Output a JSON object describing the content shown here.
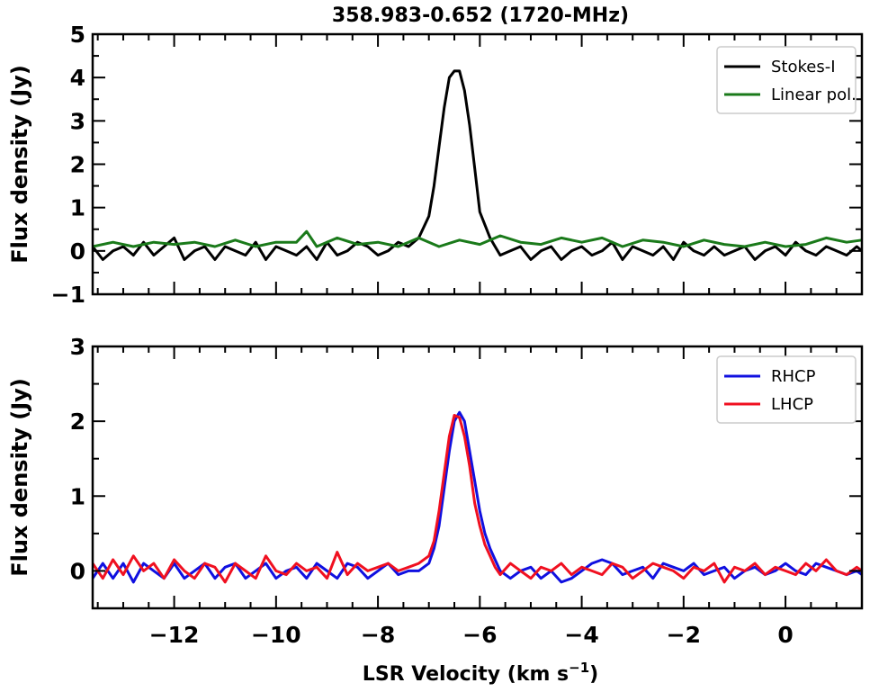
{
  "figure_title": "358.983-0.652 (1720-MHz)",
  "xlabel_main": "LSR Velocity (km s",
  "xlabel_sup": "−1",
  "xlabel_end": ")",
  "colors": {
    "stokes_i": "#000000",
    "linear_pol": "#1a7a1a",
    "rhcp": "#1010e0",
    "lhcp": "#f01020"
  },
  "chart_data": [
    {
      "type": "line",
      "panel": "top",
      "ylabel": "Flux density (Jy)",
      "xlim": [
        -13.6,
        1.5
      ],
      "ylim": [
        -1,
        5
      ],
      "yticks": [
        -1,
        0,
        1,
        2,
        3,
        4,
        5
      ],
      "ytick_labels": [
        "−1",
        "0",
        "1",
        "2",
        "3",
        "4",
        "5"
      ],
      "legend_position": "top-right",
      "series": [
        {
          "name": "Stokes-I",
          "x": [
            -13.6,
            -13.4,
            -13.2,
            -13.0,
            -12.8,
            -12.6,
            -12.4,
            -12.2,
            -12.0,
            -11.8,
            -11.6,
            -11.4,
            -11.2,
            -11.0,
            -10.8,
            -10.6,
            -10.4,
            -10.2,
            -10.0,
            -9.8,
            -9.6,
            -9.4,
            -9.2,
            -9.0,
            -8.8,
            -8.6,
            -8.4,
            -8.2,
            -8.0,
            -7.8,
            -7.6,
            -7.4,
            -7.2,
            -7.0,
            -6.9,
            -6.8,
            -6.7,
            -6.6,
            -6.5,
            -6.4,
            -6.3,
            -6.2,
            -6.1,
            -6.0,
            -5.9,
            -5.8,
            -5.7,
            -5.6,
            -5.4,
            -5.2,
            -5.0,
            -4.8,
            -4.6,
            -4.4,
            -4.2,
            -4.0,
            -3.8,
            -3.6,
            -3.4,
            -3.2,
            -3.0,
            -2.8,
            -2.6,
            -2.4,
            -2.2,
            -2.0,
            -1.8,
            -1.6,
            -1.4,
            -1.2,
            -1.0,
            -0.8,
            -0.6,
            -0.4,
            -0.2,
            0.0,
            0.2,
            0.4,
            0.6,
            0.8,
            1.0,
            1.2,
            1.4,
            1.5
          ],
          "y": [
            0.1,
            -0.2,
            0.0,
            0.1,
            -0.1,
            0.2,
            -0.1,
            0.1,
            0.3,
            -0.2,
            0.0,
            0.1,
            -0.2,
            0.1,
            0.0,
            -0.1,
            0.2,
            -0.2,
            0.1,
            0.0,
            -0.1,
            0.1,
            -0.2,
            0.2,
            -0.1,
            0.0,
            0.2,
            0.1,
            -0.1,
            0.0,
            0.2,
            0.1,
            0.3,
            0.8,
            1.5,
            2.4,
            3.3,
            4.0,
            4.15,
            4.15,
            3.7,
            2.9,
            1.9,
            0.9,
            0.6,
            0.3,
            0.1,
            -0.1,
            0.0,
            0.1,
            -0.2,
            0.0,
            0.1,
            -0.2,
            0.0,
            0.1,
            -0.1,
            0.0,
            0.2,
            -0.2,
            0.1,
            0.0,
            -0.1,
            0.1,
            -0.2,
            0.2,
            0.0,
            -0.1,
            0.1,
            -0.1,
            0.0,
            0.1,
            -0.2,
            0.0,
            0.1,
            -0.1,
            0.2,
            0.0,
            -0.1,
            0.1,
            0.0,
            -0.1,
            0.1,
            0.0
          ]
        },
        {
          "name": "Linear pol.",
          "x": [
            -13.6,
            -13.2,
            -12.8,
            -12.4,
            -12.0,
            -11.6,
            -11.2,
            -10.8,
            -10.4,
            -10.0,
            -9.6,
            -9.4,
            -9.2,
            -8.8,
            -8.4,
            -8.0,
            -7.6,
            -7.2,
            -6.8,
            -6.4,
            -6.0,
            -5.6,
            -5.2,
            -4.8,
            -4.4,
            -4.0,
            -3.6,
            -3.2,
            -2.8,
            -2.4,
            -2.0,
            -1.6,
            -1.2,
            -0.8,
            -0.4,
            0.0,
            0.4,
            0.8,
            1.2,
            1.5
          ],
          "y": [
            0.1,
            0.2,
            0.1,
            0.2,
            0.15,
            0.2,
            0.1,
            0.25,
            0.1,
            0.2,
            0.2,
            0.45,
            0.1,
            0.3,
            0.15,
            0.2,
            0.1,
            0.3,
            0.1,
            0.25,
            0.15,
            0.35,
            0.2,
            0.15,
            0.3,
            0.2,
            0.3,
            0.1,
            0.25,
            0.2,
            0.1,
            0.25,
            0.15,
            0.1,
            0.2,
            0.1,
            0.15,
            0.3,
            0.2,
            0.25
          ]
        }
      ]
    },
    {
      "type": "line",
      "panel": "bottom",
      "ylabel": "Flux density (Jy)",
      "xlabel": "LSR Velocity (km s−1)",
      "xlim": [
        -13.6,
        1.5
      ],
      "ylim": [
        -0.5,
        3
      ],
      "yticks": [
        0,
        1,
        2,
        3
      ],
      "ytick_labels": [
        "0",
        "1",
        "2",
        "3"
      ],
      "xticks": [
        -12,
        -10,
        -8,
        -6,
        -4,
        -2,
        0
      ],
      "xtick_labels": [
        "−12",
        "−10",
        "−8",
        "−6",
        "−4",
        "−2",
        "0"
      ],
      "legend_position": "top-right",
      "series": [
        {
          "name": "RHCP",
          "x": [
            -13.6,
            -13.4,
            -13.2,
            -13.0,
            -12.8,
            -12.6,
            -12.4,
            -12.2,
            -12.0,
            -11.8,
            -11.6,
            -11.4,
            -11.2,
            -11.0,
            -10.8,
            -10.6,
            -10.4,
            -10.2,
            -10.0,
            -9.8,
            -9.6,
            -9.4,
            -9.2,
            -9.0,
            -8.8,
            -8.6,
            -8.4,
            -8.2,
            -8.0,
            -7.8,
            -7.6,
            -7.4,
            -7.2,
            -7.0,
            -6.9,
            -6.8,
            -6.7,
            -6.6,
            -6.5,
            -6.4,
            -6.3,
            -6.2,
            -6.1,
            -6.0,
            -5.9,
            -5.8,
            -5.7,
            -5.6,
            -5.4,
            -5.2,
            -5.0,
            -4.8,
            -4.6,
            -4.4,
            -4.2,
            -4.0,
            -3.8,
            -3.6,
            -3.4,
            -3.2,
            -3.0,
            -2.8,
            -2.6,
            -2.4,
            -2.2,
            -2.0,
            -1.8,
            -1.6,
            -1.4,
            -1.2,
            -1.0,
            -0.8,
            -0.6,
            -0.4,
            -0.2,
            0.0,
            0.2,
            0.4,
            0.6,
            0.8,
            1.0,
            1.2,
            1.4,
            1.5
          ],
          "y": [
            -0.1,
            0.1,
            -0.1,
            0.1,
            -0.15,
            0.1,
            0.0,
            -0.1,
            0.1,
            -0.1,
            0.0,
            0.1,
            -0.1,
            0.05,
            0.1,
            -0.1,
            0.0,
            0.1,
            -0.1,
            0.0,
            0.05,
            -0.1,
            0.1,
            0.0,
            -0.1,
            0.1,
            0.05,
            -0.1,
            0.0,
            0.1,
            -0.05,
            0.0,
            0.0,
            0.1,
            0.3,
            0.6,
            1.1,
            1.6,
            2.0,
            2.12,
            2.0,
            1.6,
            1.2,
            0.8,
            0.5,
            0.3,
            0.15,
            0.0,
            -0.1,
            0.0,
            0.05,
            -0.1,
            0.0,
            -0.15,
            -0.1,
            0.0,
            0.1,
            0.15,
            0.1,
            -0.05,
            0.0,
            0.05,
            -0.1,
            0.1,
            0.05,
            0.0,
            0.1,
            -0.05,
            0.0,
            0.05,
            -0.1,
            0.0,
            0.05,
            -0.05,
            0.0,
            0.1,
            0.0,
            -0.05,
            0.1,
            0.05,
            0.0,
            -0.05,
            0.0,
            -0.05
          ]
        },
        {
          "name": "LHCP",
          "x": [
            -13.6,
            -13.4,
            -13.2,
            -13.0,
            -12.8,
            -12.6,
            -12.4,
            -12.2,
            -12.0,
            -11.8,
            -11.6,
            -11.4,
            -11.2,
            -11.0,
            -10.8,
            -10.6,
            -10.4,
            -10.2,
            -10.0,
            -9.8,
            -9.6,
            -9.4,
            -9.2,
            -9.0,
            -8.8,
            -8.6,
            -8.4,
            -8.2,
            -8.0,
            -7.8,
            -7.6,
            -7.4,
            -7.2,
            -7.0,
            -6.9,
            -6.8,
            -6.7,
            -6.6,
            -6.5,
            -6.4,
            -6.3,
            -6.2,
            -6.1,
            -6.0,
            -5.9,
            -5.8,
            -5.7,
            -5.6,
            -5.4,
            -5.2,
            -5.0,
            -4.8,
            -4.6,
            -4.4,
            -4.2,
            -4.0,
            -3.8,
            -3.6,
            -3.4,
            -3.2,
            -3.0,
            -2.8,
            -2.6,
            -2.4,
            -2.2,
            -2.0,
            -1.8,
            -1.6,
            -1.4,
            -1.2,
            -1.0,
            -0.8,
            -0.6,
            -0.4,
            -0.2,
            0.0,
            0.2,
            0.4,
            0.6,
            0.8,
            1.0,
            1.2,
            1.4,
            1.5
          ],
          "y": [
            0.1,
            -0.1,
            0.15,
            -0.05,
            0.2,
            0.0,
            0.1,
            -0.1,
            0.15,
            0.0,
            -0.1,
            0.1,
            0.05,
            -0.15,
            0.1,
            0.0,
            -0.1,
            0.2,
            0.0,
            -0.05,
            0.1,
            0.0,
            0.05,
            -0.1,
            0.25,
            -0.05,
            0.1,
            0.0,
            0.05,
            0.1,
            0.0,
            0.05,
            0.1,
            0.2,
            0.4,
            0.8,
            1.3,
            1.8,
            2.08,
            2.05,
            1.8,
            1.4,
            0.9,
            0.6,
            0.35,
            0.2,
            0.05,
            -0.05,
            0.1,
            0.0,
            -0.1,
            0.05,
            0.0,
            0.1,
            -0.05,
            0.05,
            0.0,
            -0.05,
            0.1,
            0.05,
            -0.1,
            0.0,
            0.1,
            0.05,
            0.0,
            -0.1,
            0.05,
            0.0,
            0.1,
            -0.15,
            0.05,
            0.0,
            0.1,
            -0.05,
            0.05,
            0.0,
            -0.05,
            0.1,
            0.0,
            0.15,
            0.0,
            -0.05,
            0.05,
            0.0
          ]
        }
      ]
    }
  ]
}
